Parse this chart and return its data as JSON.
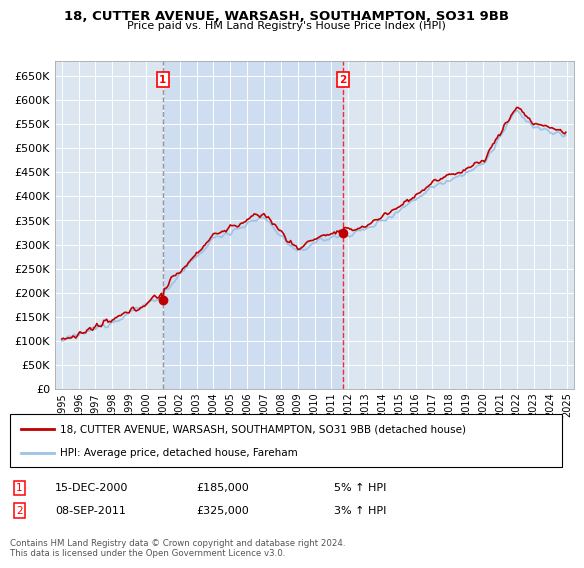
{
  "title": "18, CUTTER AVENUE, WARSASH, SOUTHAMPTON, SO31 9BB",
  "subtitle": "Price paid vs. HM Land Registry's House Price Index (HPI)",
  "x_start_year": 1995,
  "x_end_year": 2025,
  "ylim": [
    0,
    680000
  ],
  "yticks": [
    0,
    50000,
    100000,
    150000,
    200000,
    250000,
    300000,
    350000,
    400000,
    450000,
    500000,
    550000,
    600000,
    650000
  ],
  "sale1_year": 2001.0,
  "sale1_price": 185000,
  "sale1_label": "1",
  "sale2_year": 2011.7,
  "sale2_price": 325000,
  "sale2_label": "2",
  "legend_red_label": "18, CUTTER AVENUE, WARSASH, SOUTHAMPTON, SO31 9BB (detached house)",
  "legend_blue_label": "HPI: Average price, detached house, Fareham",
  "annotation1_date": "15-DEC-2000",
  "annotation1_price": "£185,000",
  "annotation1_hpi": "5% ↑ HPI",
  "annotation2_date": "08-SEP-2011",
  "annotation2_price": "£325,000",
  "annotation2_hpi": "3% ↑ HPI",
  "footnote": "Contains HM Land Registry data © Crown copyright and database right 2024.\nThis data is licensed under the Open Government Licence v3.0.",
  "bg_color": "#ffffff",
  "plot_bg_color": "#dce6f1",
  "shade_color": "#c5d9f0",
  "grid_color": "#ffffff",
  "red_color": "#c00000",
  "blue_color": "#9dc3e6",
  "vline1_color": "#808080",
  "vline2_color": "#ff0000"
}
